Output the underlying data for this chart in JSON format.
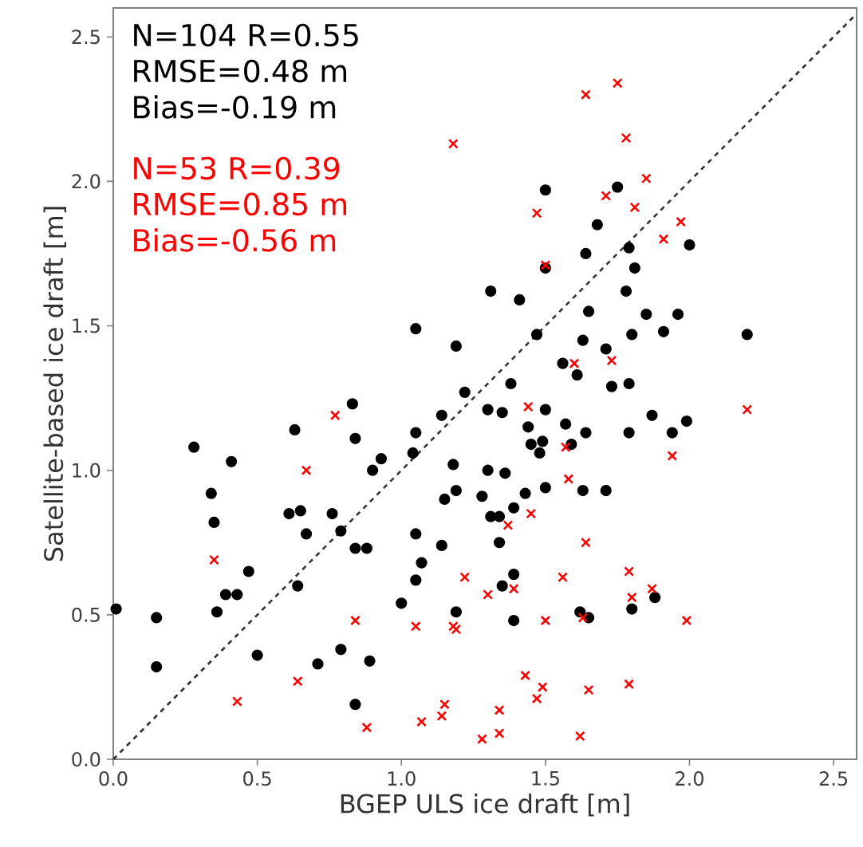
{
  "chart_data": {
    "type": "scatter",
    "xlabel": "BGEP ULS ice draft [m]",
    "ylabel": "Satellite-based ice draft [m]",
    "xlim": [
      0,
      2.58
    ],
    "ylim": [
      0,
      2.6
    ],
    "xticks": [
      {
        "value": 0,
        "label": "0.0"
      },
      {
        "value": 0.5,
        "label": "0.5"
      },
      {
        "value": 1,
        "label": "1.0"
      },
      {
        "value": 1.5,
        "label": "1.5"
      },
      {
        "value": 2,
        "label": "2.0"
      },
      {
        "value": 2.5,
        "label": "2.5"
      }
    ],
    "yticks": [
      {
        "value": 0,
        "label": "0.0"
      },
      {
        "value": 0.5,
        "label": "0.5"
      },
      {
        "value": 1,
        "label": "1.0"
      },
      {
        "value": 1.5,
        "label": "1.5"
      },
      {
        "value": 2,
        "label": "2.0"
      },
      {
        "value": 2.5,
        "label": "2.5"
      }
    ],
    "grid": false,
    "annotations": [
      "N=104 R=0.55",
      "RMSE=0.48 m",
      "Bias=-0.19 m",
      "N=53  R=0.39",
      "RMSE=0.85 m",
      "Bias=-0.56 m"
    ],
    "series": [
      {
        "color": "#000000",
        "marker": "circle",
        "x": [
          0.28,
          0.41,
          0.34,
          0.35,
          0.01,
          0.15,
          0.15,
          0.36,
          0.39,
          0.43,
          0.47,
          0.5,
          0.61,
          0.65,
          0.67,
          0.64,
          0.76,
          0.79,
          0.84,
          0.88,
          0.9,
          0.93,
          0.79,
          0.71,
          0.89,
          0.84,
          1.04,
          1.18,
          1.15,
          1.19,
          1.05,
          1.14,
          1.07,
          1.05,
          1.0,
          1.19,
          1.05,
          1.19,
          1.22,
          0.83,
          0.84,
          0.63,
          1.05,
          1.14,
          1.5,
          1.75,
          1.68,
          1.64,
          1.79,
          2.0,
          1.81,
          1.5,
          1.31,
          1.41,
          1.78,
          1.65,
          1.85,
          1.96,
          1.91,
          1.8,
          2.2,
          1.47,
          1.63,
          1.71,
          1.56,
          1.61,
          1.38,
          1.73,
          1.79,
          1.3,
          1.35,
          1.5,
          1.44,
          1.49,
          1.45,
          1.48,
          1.57,
          1.64,
          1.59,
          1.87,
          1.99,
          1.94,
          1.79,
          1.3,
          1.36,
          1.28,
          1.43,
          1.5,
          1.63,
          1.71,
          1.39,
          1.31,
          1.34,
          1.34,
          1.39,
          1.35,
          1.39,
          1.62,
          1.65,
          1.8,
          1.88
        ],
        "values": [
          1.08,
          1.03,
          0.92,
          0.82,
          0.52,
          0.49,
          0.32,
          0.51,
          0.57,
          0.57,
          0.65,
          0.36,
          0.85,
          0.86,
          0.78,
          0.6,
          0.85,
          0.79,
          0.73,
          0.73,
          1.0,
          1.04,
          0.38,
          0.33,
          0.34,
          0.19,
          1.06,
          1.02,
          0.9,
          0.93,
          0.78,
          0.74,
          0.68,
          0.62,
          0.54,
          0.51,
          1.49,
          1.43,
          1.27,
          1.23,
          1.11,
          1.14,
          1.13,
          1.19,
          1.97,
          1.98,
          1.85,
          1.75,
          1.77,
          1.78,
          1.7,
          1.7,
          1.62,
          1.59,
          1.62,
          1.55,
          1.54,
          1.54,
          1.48,
          1.47,
          1.47,
          1.47,
          1.45,
          1.42,
          1.37,
          1.33,
          1.3,
          1.29,
          1.3,
          1.21,
          1.2,
          1.21,
          1.15,
          1.1,
          1.09,
          1.06,
          1.16,
          1.13,
          1.09,
          1.19,
          1.17,
          1.13,
          1.13,
          1.0,
          0.99,
          0.91,
          0.92,
          0.94,
          0.93,
          0.93,
          0.87,
          0.84,
          0.84,
          0.75,
          0.64,
          0.6,
          0.48,
          0.51,
          0.49,
          0.52,
          0.56
        ]
      },
      {
        "color": "#ff0000",
        "marker": "cross",
        "x": [
          0.67,
          0.35,
          0.84,
          1.05,
          1.18,
          1.19,
          1.22,
          0.64,
          0.43,
          0.88,
          1.07,
          1.15,
          1.14,
          0.77,
          1.18,
          1.64,
          1.75,
          1.78,
          1.85,
          1.71,
          1.47,
          1.81,
          1.97,
          1.91,
          1.5,
          1.6,
          1.73,
          1.44,
          2.2,
          1.57,
          1.94,
          1.58,
          1.45,
          1.37,
          1.64,
          1.3,
          1.39,
          1.56,
          1.79,
          1.8,
          1.87,
          1.5,
          1.63,
          1.99,
          1.43,
          1.49,
          1.47,
          1.65,
          1.79,
          1.34,
          1.34,
          1.28,
          1.62
        ],
        "values": [
          1.0,
          0.69,
          0.48,
          0.46,
          0.46,
          0.45,
          0.63,
          0.27,
          0.2,
          0.11,
          0.13,
          0.19,
          0.15,
          1.19,
          2.13,
          2.3,
          2.34,
          2.15,
          2.01,
          1.95,
          1.89,
          1.91,
          1.86,
          1.8,
          1.71,
          1.37,
          1.38,
          1.22,
          1.21,
          1.08,
          1.05,
          0.97,
          0.85,
          0.81,
          0.75,
          0.57,
          0.59,
          0.63,
          0.65,
          0.56,
          0.59,
          0.48,
          0.49,
          0.48,
          0.29,
          0.25,
          0.21,
          0.24,
          0.26,
          0.17,
          0.09,
          0.07,
          0.08
        ]
      },
      {
        "type": "line",
        "color": "#333333",
        "line_style": "dashed",
        "marker": "none",
        "x": [
          0,
          2.58
        ],
        "values": [
          0,
          2.58
        ]
      }
    ]
  }
}
